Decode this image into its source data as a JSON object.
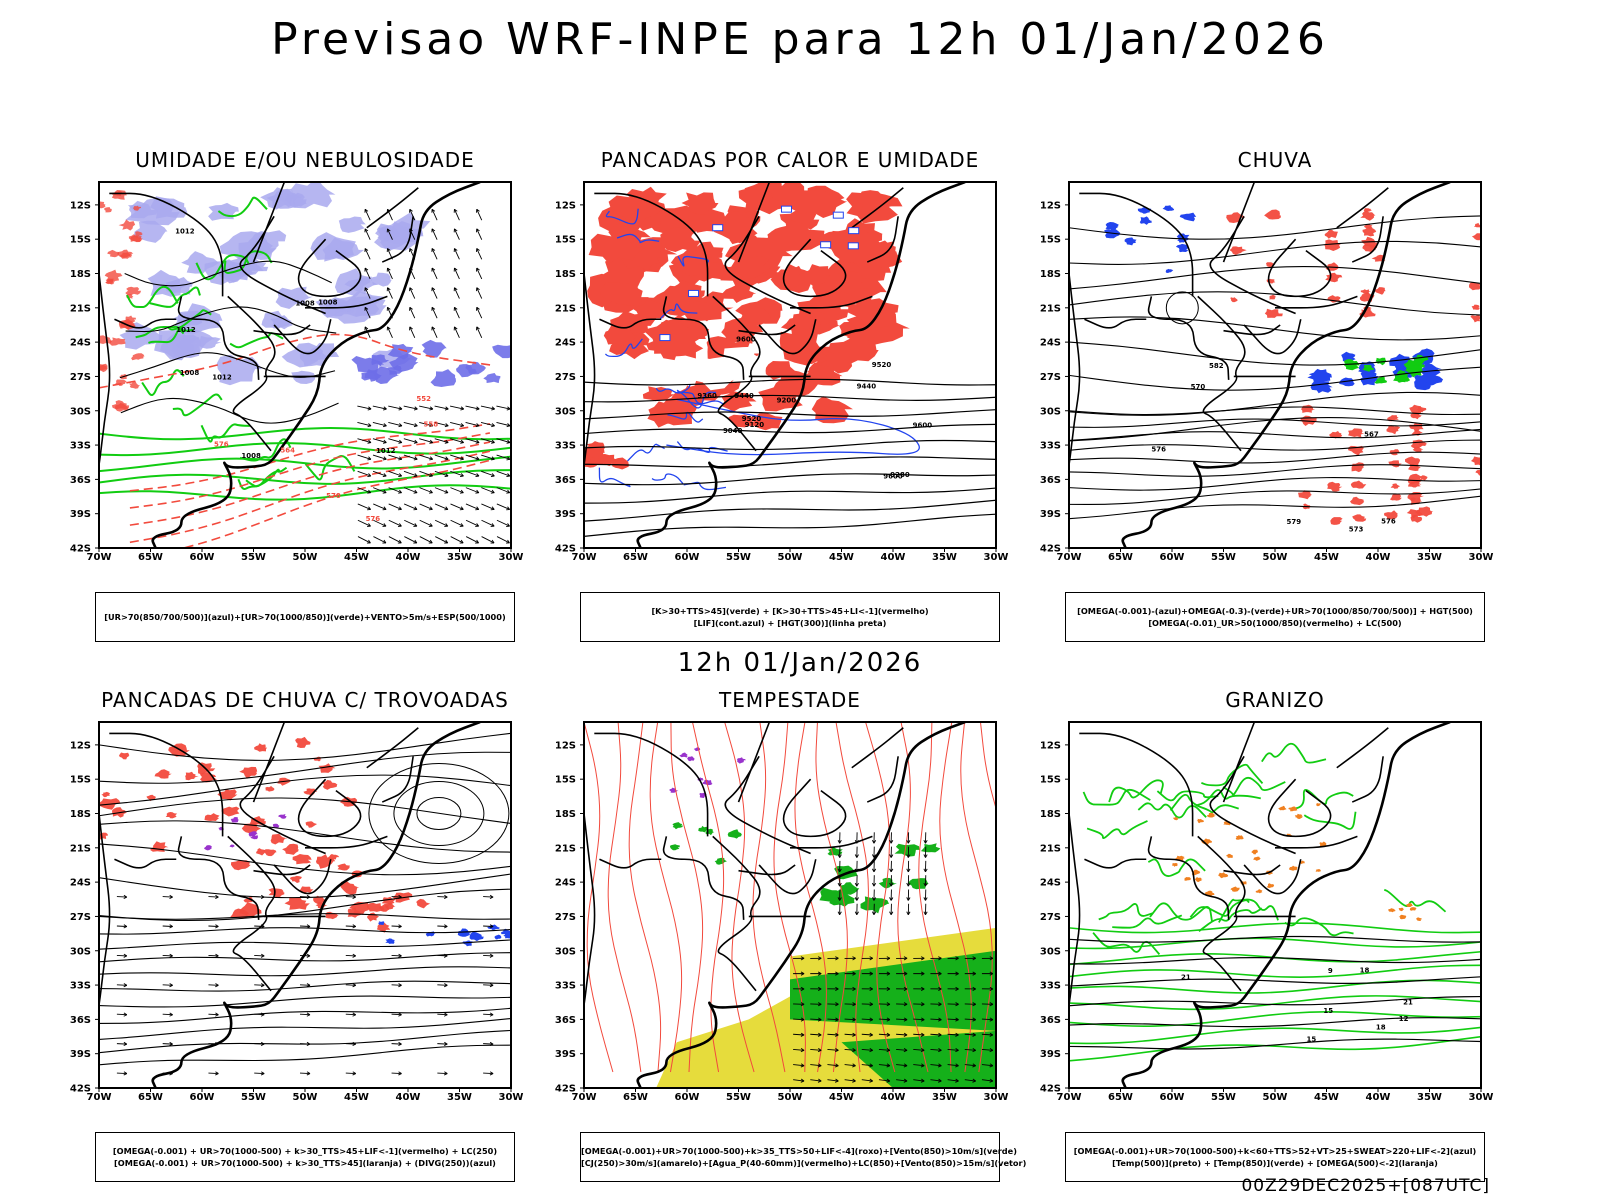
{
  "header": {
    "title": "Previsao WRF-INPE  para 12h 01/Jan/2026"
  },
  "mid_title": "12h 01/Jan/2026",
  "footer": "00Z29DEC2025+[087UTC]",
  "colors": {
    "red": "#f24a3d",
    "green": "#11cc11",
    "blue": "#2244ee",
    "lavender": "#a9a9ee",
    "yellow": "#e6dc3c",
    "orange": "#f08020",
    "purple": "#9933cc",
    "black": "#000000"
  },
  "axes": {
    "lat_labels": [
      "12S",
      "15S",
      "18S",
      "21S",
      "24S",
      "27S",
      "30S",
      "33S",
      "36S",
      "39S",
      "42S"
    ],
    "lon_labels": [
      "70W",
      "65W",
      "60W",
      "55W",
      "50W",
      "45W",
      "40W",
      "35W",
      "30W"
    ]
  },
  "panels": [
    {
      "title": "UMIDADE E/OU NEBULOSIDADE",
      "legend": [
        "[UR>70(850/700/500)](azul)+[UR>70(1000/850)](verde)+VENTO>5m/s+ESP(500/1000)"
      ],
      "labels": [
        "1012",
        "1012",
        "1012",
        "1008",
        "1008",
        "1008",
        "1008",
        "1012",
        "576",
        "576",
        "570",
        "564",
        "558",
        "552"
      ]
    },
    {
      "title": "PANCADAS POR CALOR E UMIDADE",
      "legend": [
        "[K>30+TTS>45](verde) + [K>30+TTS>45+LI<-1](vermelho)",
        "[LIF](cont.azul) + [HGT(300)](linha preta)"
      ],
      "labels": [
        "9600",
        "9600",
        "9600",
        "9520",
        "9520",
        "9440",
        "9440",
        "9360",
        "9280",
        "9200",
        "9120",
        "9040"
      ]
    },
    {
      "title": "CHUVA",
      "legend": [
        "[OMEGA(-0.001)-(azul)+OMEGA(-0.3)-(verde)+UR>70(1000/850/700/500)] + HGT(500)",
        "[OMEGA(-0.01)_UR>50(1000/850)(vermelho) + LC(500)"
      ],
      "labels": [
        "582",
        "576",
        "576",
        "573",
        "570",
        "567",
        "579"
      ]
    },
    {
      "title": "PANCADAS DE CHUVA C/ TROVOADAS",
      "legend": [
        "[OMEGA(-0.001) + UR>70(1000-500) + k>30_TTS>45+LIF<-1](vermelho) + LC(250)",
        "[OMEGA(-0.001) + UR>70(1000-500) + k>30_TTS>45](laranja) + (DIVG(250))(azul)"
      ],
      "labels": []
    },
    {
      "title": "TEMPESTADE",
      "legend": [
        "[OMEGA(-0.001)+UR>70(1000-500)+k>35_TTS>50+LIF<-4](roxo)+[Vento(850)>10m/s](verde)",
        "[CJ(250)>30m/s](amarelo)+[Agua_P(40-60mm)](vermelho)+LC(850)+[Vento(850)>15m/s](vetor)"
      ],
      "labels": []
    },
    {
      "title": "GRANIZO",
      "legend": [
        "[OMEGA(-0.001)+UR>70(1000-500)+k<60+TTS>52+VT>25+SWEAT>220+LIF<-2](azul)",
        "[Temp(500)](preto) + [Temp(850)](verde) + [OMEGA(500)<-2](laranja)"
      ],
      "labels": [
        "21",
        "18",
        "15",
        "12",
        "9",
        "15",
        "18",
        "21"
      ]
    }
  ]
}
